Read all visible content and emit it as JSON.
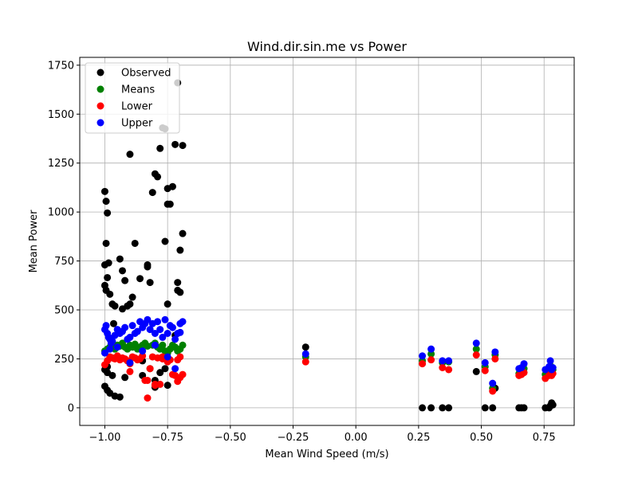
{
  "chart_data": {
    "type": "scatter",
    "title": "Wind.dir.sin.me vs Power",
    "xlabel": "Mean Wind Speed (m/s)",
    "ylabel": "Mean Power",
    "xlim": [
      -1.1,
      0.87
    ],
    "ylim": [
      -90,
      1790
    ],
    "x_ticks": [
      -1.0,
      -0.75,
      -0.5,
      -0.25,
      0.0,
      0.25,
      0.5,
      0.75
    ],
    "x_tick_labels": [
      "−1.00",
      "−0.75",
      "−0.50",
      "−0.25",
      "0.00",
      "0.25",
      "0.50",
      "0.75"
    ],
    "y_ticks": [
      0,
      250,
      500,
      750,
      1000,
      1250,
      1500,
      1750
    ],
    "y_tick_labels": [
      "0",
      "250",
      "500",
      "750",
      "1000",
      "1250",
      "1500",
      "1750"
    ],
    "grid": true,
    "legend_position": "top-left",
    "series": [
      {
        "name": "Observed",
        "color": "#000000",
        "x": [
          -1.0,
          -0.995,
          -0.99,
          -0.995,
          -0.985,
          -1.0,
          -0.99,
          -1.0,
          -0.995,
          -0.98,
          -0.97,
          -0.96,
          -0.965,
          -1.0,
          -0.99,
          -0.97,
          -1.0,
          -0.99,
          -0.98,
          -0.96,
          -0.94,
          -0.93,
          -0.91,
          -0.9,
          -0.89,
          -0.92,
          -0.93,
          -0.88,
          -0.86,
          -0.85,
          -0.83,
          -0.83,
          -0.82,
          -0.81,
          -0.8,
          -0.79,
          -0.78,
          -0.77,
          -0.76,
          -0.75,
          -0.76,
          -0.75,
          -0.74,
          -0.73,
          -0.72,
          -0.71,
          -0.7,
          -0.69,
          -0.7,
          -0.71,
          -0.69,
          -0.72,
          -0.75,
          -0.76,
          -0.78,
          -0.8,
          -0.9,
          -0.85,
          -0.94,
          -0.92,
          -0.97,
          -0.99,
          -0.8,
          -0.75,
          -0.71,
          -0.2,
          0.265,
          0.3,
          0.345,
          0.37,
          0.48,
          0.515,
          0.545,
          0.555,
          0.65,
          0.66,
          0.67,
          0.755,
          0.77,
          0.775,
          0.78,
          0.785
        ],
        "y": [
          1105,
          1055,
          995,
          840,
          740,
          730,
          665,
          625,
          600,
          580,
          530,
          520,
          430,
          195,
          180,
          165,
          110,
          90,
          75,
          60,
          55,
          505,
          520,
          530,
          565,
          650,
          700,
          840,
          660,
          165,
          720,
          730,
          640,
          1100,
          1195,
          1180,
          1325,
          1430,
          1425,
          1120,
          850,
          1040,
          1040,
          1130,
          1345,
          600,
          590,
          890,
          805,
          640,
          1340,
          370,
          530,
          200,
          180,
          140,
          1295,
          240,
          760,
          155,
          255,
          210,
          105,
          115,
          1660,
          310,
          0,
          0,
          0,
          0,
          185,
          0,
          0,
          100,
          0,
          0,
          0,
          0,
          0,
          10,
          25,
          15
        ]
      },
      {
        "name": "Means",
        "color": "#008000",
        "x": [
          -1.0,
          -0.99,
          -0.98,
          -0.97,
          -0.96,
          -0.95,
          -0.94,
          -0.93,
          -0.92,
          -0.91,
          -0.9,
          -0.89,
          -0.88,
          -0.87,
          -0.86,
          -0.85,
          -0.84,
          -0.83,
          -0.82,
          -0.81,
          -0.8,
          -0.79,
          -0.78,
          -0.77,
          -0.76,
          -0.75,
          -0.74,
          -0.73,
          -0.72,
          -0.71,
          -0.7,
          -0.69,
          -0.2,
          0.265,
          0.3,
          0.345,
          0.37,
          0.48,
          0.515,
          0.545,
          0.555,
          0.65,
          0.66,
          0.67,
          0.755,
          0.77,
          0.775,
          0.78,
          0.785
        ],
        "y": [
          290,
          300,
          310,
          305,
          300,
          320,
          315,
          330,
          310,
          300,
          320,
          310,
          325,
          300,
          310,
          320,
          330,
          315,
          200,
          320,
          330,
          310,
          300,
          320,
          290,
          280,
          300,
          320,
          310,
          290,
          300,
          320,
          260,
          240,
          275,
          230,
          235,
          300,
          210,
          100,
          270,
          175,
          185,
          200,
          170,
          205,
          215,
          185,
          195
        ]
      },
      {
        "name": "Lower",
        "color": "#ff0000",
        "x": [
          -1.0,
          -0.99,
          -0.98,
          -0.97,
          -0.96,
          -0.95,
          -0.94,
          -0.93,
          -0.92,
          -0.91,
          -0.9,
          -0.89,
          -0.88,
          -0.87,
          -0.86,
          -0.85,
          -0.84,
          -0.83,
          -0.82,
          -0.81,
          -0.8,
          -0.79,
          -0.78,
          -0.77,
          -0.76,
          -0.75,
          -0.74,
          -0.73,
          -0.72,
          -0.71,
          -0.7,
          -0.69,
          -0.9,
          -0.83,
          -0.8,
          -0.77,
          -0.7,
          -0.71,
          -0.2,
          0.265,
          0.3,
          0.345,
          0.37,
          0.48,
          0.515,
          0.545,
          0.555,
          0.65,
          0.66,
          0.67,
          0.755,
          0.77,
          0.775,
          0.78,
          0.785
        ],
        "y": [
          220,
          240,
          260,
          255,
          250,
          265,
          245,
          255,
          250,
          240,
          185,
          260,
          255,
          245,
          250,
          265,
          140,
          50,
          200,
          260,
          115,
          255,
          120,
          260,
          250,
          235,
          245,
          170,
          165,
          135,
          155,
          170,
          225,
          140,
          120,
          250,
          260,
          245,
          235,
          225,
          245,
          205,
          195,
          270,
          190,
          85,
          250,
          165,
          170,
          180,
          150,
          165,
          185,
          165,
          175
        ]
      },
      {
        "name": "Upper",
        "color": "#0000ff",
        "x": [
          -1.0,
          -0.995,
          -0.99,
          -0.985,
          -0.98,
          -0.975,
          -0.97,
          -0.96,
          -0.95,
          -0.94,
          -0.93,
          -0.92,
          -0.91,
          -0.9,
          -0.89,
          -0.88,
          -0.87,
          -0.86,
          -0.85,
          -0.84,
          -0.83,
          -0.82,
          -0.81,
          -0.8,
          -0.79,
          -0.78,
          -0.77,
          -0.76,
          -0.75,
          -0.74,
          -0.73,
          -0.72,
          -0.71,
          -0.7,
          -0.69,
          -1.0,
          -0.98,
          -0.95,
          -0.9,
          -0.85,
          -0.8,
          -0.75,
          -0.72,
          -0.7,
          -0.2,
          0.265,
          0.3,
          0.345,
          0.37,
          0.48,
          0.515,
          0.545,
          0.555,
          0.65,
          0.66,
          0.67,
          0.755,
          0.77,
          0.775,
          0.78,
          0.785
        ],
        "y": [
          400,
          420,
          380,
          360,
          350,
          330,
          340,
          370,
          400,
          380,
          390,
          410,
          350,
          360,
          420,
          380,
          390,
          440,
          410,
          430,
          450,
          400,
          430,
          380,
          440,
          400,
          360,
          450,
          380,
          420,
          410,
          350,
          380,
          430,
          440,
          280,
          300,
          310,
          230,
          290,
          320,
          260,
          200,
          385,
          275,
          265,
          300,
          240,
          240,
          330,
          230,
          125,
          285,
          200,
          205,
          225,
          195,
          210,
          240,
          195,
          205
        ]
      }
    ]
  }
}
